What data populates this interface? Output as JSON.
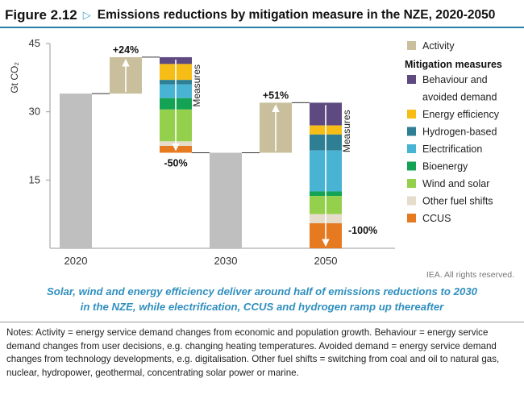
{
  "figure": {
    "label": "Figure 2.12",
    "title": "Emissions reductions by mitigation measure in the NZE, 2020-2050",
    "marker_icon": "triangle-right-outline-icon"
  },
  "chart_data": {
    "type": "waterfall",
    "ylabel": "Gt CO₂",
    "ylim": [
      0,
      45
    ],
    "yticks": [
      15,
      30,
      45
    ],
    "xticks": [
      "2020",
      "2030",
      "2050"
    ],
    "totals": [
      {
        "label": "2020",
        "value": 34
      },
      {
        "label": "2030",
        "value": 21
      },
      {
        "label": "2050",
        "value": 0
      }
    ],
    "activity": [
      {
        "from": 34,
        "to": 42,
        "label": "+24%"
      },
      {
        "from": 21,
        "to": 32,
        "label": "+51%"
      }
    ],
    "measures": [
      {
        "label": "-50%",
        "axis_label": "Measures",
        "from": 42,
        "to": 21,
        "segments": [
          {
            "measure": "Behaviour and avoided demand",
            "value": 1.5
          },
          {
            "measure": "Energy efficiency",
            "value": 3.5
          },
          {
            "measure": "Hydrogen-based",
            "value": 1.0
          },
          {
            "measure": "Electrification",
            "value": 3.0
          },
          {
            "measure": "Bioenergy",
            "value": 2.5
          },
          {
            "measure": "Wind and solar",
            "value": 7.0
          },
          {
            "measure": "Other fuel shifts",
            "value": 1.0
          },
          {
            "measure": "CCUS",
            "value": 1.5
          }
        ]
      },
      {
        "label": "-100%",
        "axis_label": "Measures",
        "from": 32,
        "to": 0,
        "segments": [
          {
            "measure": "Behaviour and avoided demand",
            "value": 5.0
          },
          {
            "measure": "Energy efficiency",
            "value": 2.0
          },
          {
            "measure": "Hydrogen-based",
            "value": 3.5
          },
          {
            "measure": "Electrification",
            "value": 9.0
          },
          {
            "measure": "Bioenergy",
            "value": 1.0
          },
          {
            "measure": "Wind and solar",
            "value": 4.0
          },
          {
            "measure": "Other fuel shifts",
            "value": 2.0
          },
          {
            "measure": "CCUS",
            "value": 5.5
          }
        ]
      }
    ],
    "legend": {
      "placement": "right",
      "activity_label": "Activity",
      "heading": "Mitigation measures",
      "items": [
        {
          "name": "Behaviour and avoided demand",
          "lines": [
            "Behaviour and",
            "avoided demand"
          ],
          "color": "#5e4a80"
        },
        {
          "name": "Energy efficiency",
          "lines": [
            "Energy efficiency"
          ],
          "color": "#f6bd16"
        },
        {
          "name": "Hydrogen-based",
          "lines": [
            "Hydrogen-based"
          ],
          "color": "#2e7f93"
        },
        {
          "name": "Electrification",
          "lines": [
            "Electrification"
          ],
          "color": "#49b3d3"
        },
        {
          "name": "Bioenergy",
          "lines": [
            "Bioenergy"
          ],
          "color": "#14a354"
        },
        {
          "name": "Wind and solar",
          "lines": [
            "Wind and solar"
          ],
          "color": "#94d04b"
        },
        {
          "name": "Other fuel shifts",
          "lines": [
            "Other fuel shifts"
          ],
          "color": "#e6dccb"
        },
        {
          "name": "CCUS",
          "lines": [
            "CCUS"
          ],
          "color": "#e67a21"
        }
      ]
    },
    "colors": {
      "total": "#bfbfbf",
      "activity": "#c9bf9c",
      "axis": "#9a9a9a",
      "connector": "#333333"
    }
  },
  "copyright": "IEA. All rights reserved.",
  "caption": [
    "Solar, wind and energy efficiency deliver around half of emissions reductions to 2030",
    "in the NZE, while electrification, CCUS and hydrogen ramp up thereafter"
  ],
  "notes": "Notes: Activity = energy service demand changes from economic and population growth. Behaviour = energy service demand changes from user decisions, e.g. changing heating temperatures. Avoided demand = energy service demand changes from technology developments, e.g. digitalisation. Other fuel shifts = switching from coal and oil to natural gas, nuclear, hydropower, geothermal, concentrating solar power or marine."
}
